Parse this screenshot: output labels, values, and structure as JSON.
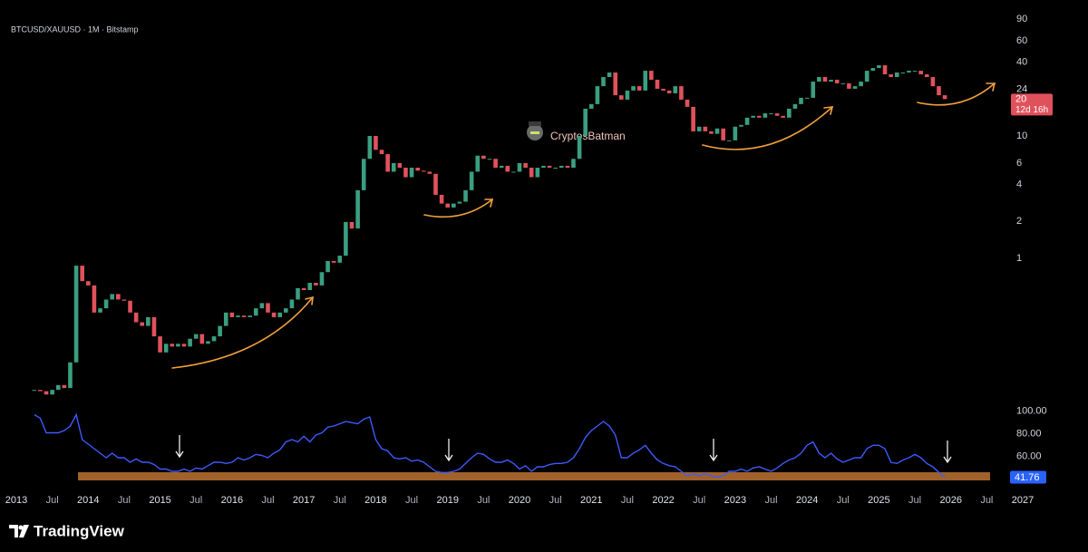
{
  "chart_data": {
    "type": "candlestick",
    "title": "BTCUSD/XAUUSD · 1M · Bitstamp",
    "watermark": "CryptosBatman",
    "countdown": "12d 16h",
    "log_scale": true,
    "up_color": "#3a9f80",
    "down_color": "#e0525b",
    "ylim": [
      0.071,
      95
    ],
    "yticks": [
      90,
      60,
      40,
      24,
      10,
      6,
      4,
      2,
      1
    ],
    "xlim": [
      "2013-01",
      "2027-01"
    ],
    "xticks": [
      {
        "value": "2013-01",
        "label": "2013"
      },
      {
        "value": "2013-07",
        "label": "Jul"
      },
      {
        "value": "2014-01",
        "label": "2014"
      },
      {
        "value": "2014-07",
        "label": "Jul"
      },
      {
        "value": "2015-01",
        "label": "2015"
      },
      {
        "value": "2015-07",
        "label": "Jul"
      },
      {
        "value": "2016-01",
        "label": "2016"
      },
      {
        "value": "2016-07",
        "label": "Jul"
      },
      {
        "value": "2017-01",
        "label": "2017"
      },
      {
        "value": "2017-07",
        "label": "Jul"
      },
      {
        "value": "2018-01",
        "label": "2018"
      },
      {
        "value": "2018-07",
        "label": "Jul"
      },
      {
        "value": "2019-01",
        "label": "2019"
      },
      {
        "value": "2019-07",
        "label": "Jul"
      },
      {
        "value": "2020-01",
        "label": "2020"
      },
      {
        "value": "2020-07",
        "label": "Jul"
      },
      {
        "value": "2021-01",
        "label": "2021"
      },
      {
        "value": "2021-07",
        "label": "Jul"
      },
      {
        "value": "2022-01",
        "label": "2022"
      },
      {
        "value": "2022-07",
        "label": "Jul"
      },
      {
        "value": "2023-01",
        "label": "2023"
      },
      {
        "value": "2023-07",
        "label": "Jul"
      },
      {
        "value": "2024-01",
        "label": "2024"
      },
      {
        "value": "2024-07",
        "label": "Jul"
      },
      {
        "value": "2025-01",
        "label": "2025"
      },
      {
        "value": "2025-07",
        "label": "Jul"
      },
      {
        "value": "2026-01",
        "label": "2026"
      },
      {
        "value": "2026-07",
        "label": "Jul"
      },
      {
        "value": "2027-01",
        "label": "2027"
      }
    ],
    "x": [
      "2013-04",
      "2013-05",
      "2013-06",
      "2013-07",
      "2013-08",
      "2013-09",
      "2013-10",
      "2013-11",
      "2013-12",
      "2014-01",
      "2014-02",
      "2014-03",
      "2014-04",
      "2014-05",
      "2014-06",
      "2014-07",
      "2014-08",
      "2014-09",
      "2014-10",
      "2014-11",
      "2014-12",
      "2015-01",
      "2015-02",
      "2015-03",
      "2015-04",
      "2015-05",
      "2015-06",
      "2015-07",
      "2015-08",
      "2015-09",
      "2015-10",
      "2015-11",
      "2015-12",
      "2016-01",
      "2016-02",
      "2016-03",
      "2016-04",
      "2016-05",
      "2016-06",
      "2016-07",
      "2016-08",
      "2016-09",
      "2016-10",
      "2016-11",
      "2016-12",
      "2017-01",
      "2017-02",
      "2017-03",
      "2017-04",
      "2017-05",
      "2017-06",
      "2017-07",
      "2017-08",
      "2017-09",
      "2017-10",
      "2017-11",
      "2017-12",
      "2018-01",
      "2018-02",
      "2018-03",
      "2018-04",
      "2018-05",
      "2018-06",
      "2018-07",
      "2018-08",
      "2018-09",
      "2018-10",
      "2018-11",
      "2018-12",
      "2019-01",
      "2019-02",
      "2019-03",
      "2019-04",
      "2019-05",
      "2019-06",
      "2019-07",
      "2019-08",
      "2019-09",
      "2019-10",
      "2019-11",
      "2019-12",
      "2020-01",
      "2020-02",
      "2020-03",
      "2020-04",
      "2020-05",
      "2020-06",
      "2020-07",
      "2020-08",
      "2020-09",
      "2020-10",
      "2020-11",
      "2020-12",
      "2021-01",
      "2021-02",
      "2021-03",
      "2021-04",
      "2021-05",
      "2021-06",
      "2021-07",
      "2021-08",
      "2021-09",
      "2021-10",
      "2021-11",
      "2021-12",
      "2022-01",
      "2022-02",
      "2022-03",
      "2022-04",
      "2022-05",
      "2022-06",
      "2022-07",
      "2022-08",
      "2022-09",
      "2022-10",
      "2022-11",
      "2022-12",
      "2023-01",
      "2023-02",
      "2023-03",
      "2023-04",
      "2023-05",
      "2023-06",
      "2023-07",
      "2023-08",
      "2023-09",
      "2023-10",
      "2023-11",
      "2023-12",
      "2024-01",
      "2024-02",
      "2024-03",
      "2024-04",
      "2024-05",
      "2024-06",
      "2024-07",
      "2024-08",
      "2024-09",
      "2024-10",
      "2024-11",
      "2024-12",
      "2025-01",
      "2025-02",
      "2025-03",
      "2025-04",
      "2025-05",
      "2025-06",
      "2025-07",
      "2025-08",
      "2025-09",
      "2025-10",
      "2025-11",
      "2025-12"
    ],
    "closes": [
      0.084,
      0.082,
      0.077,
      0.084,
      0.092,
      0.087,
      0.141,
      0.87,
      0.65,
      0.6,
      0.36,
      0.39,
      0.46,
      0.51,
      0.46,
      0.45,
      0.36,
      0.3,
      0.28,
      0.33,
      0.23,
      0.17,
      0.2,
      0.19,
      0.2,
      0.19,
      0.22,
      0.24,
      0.2,
      0.21,
      0.23,
      0.28,
      0.36,
      0.33,
      0.34,
      0.33,
      0.34,
      0.39,
      0.43,
      0.36,
      0.33,
      0.36,
      0.39,
      0.46,
      0.57,
      0.55,
      0.63,
      0.6,
      0.77,
      0.95,
      0.92,
      1.05,
      1.98,
      1.75,
      3.6,
      6.5,
      10,
      7.7,
      7.1,
      5.1,
      6.0,
      5.5,
      4.6,
      5.5,
      5.2,
      5.1,
      4.9,
      3.3,
      2.8,
      2.6,
      2.8,
      2.9,
      3.6,
      5.1,
      6.9,
      6.5,
      6.5,
      5.5,
      5.7,
      5.1,
      5.1,
      6.0,
      5.5,
      4.6,
      5.5,
      5.7,
      5.5,
      5.5,
      5.7,
      5.5,
      6.5,
      10,
      16.7,
      18.2,
      25.5,
      30.3,
      33,
      21.5,
      19.8,
      23.5,
      25.5,
      23.5,
      34.1,
      28.8,
      24.3,
      23.5,
      22.3,
      25.5,
      19.8,
      17.3,
      10.9,
      11.9,
      10.9,
      10.4,
      11.5,
      9.2,
      9.2,
      11.9,
      12.3,
      14.1,
      14.6,
      14.1,
      15.3,
      15.3,
      14.6,
      14.1,
      16.7,
      18.2,
      20.5,
      20.5,
      27.8,
      30.3,
      27.8,
      28.8,
      26.9,
      26.9,
      24.3,
      25.5,
      27.8,
      34.1,
      35.9,
      37.8,
      31.9,
      30.3,
      33,
      33,
      34.1,
      34.1,
      31.9,
      30.3,
      25.5,
      21.5,
      20
    ],
    "indicator": {
      "type": "line",
      "color": "#3d5afe",
      "ylim": [
        35,
        107
      ],
      "yticks": [
        {
          "value": 100,
          "label": "100.00"
        },
        {
          "value": 80,
          "label": "80.00"
        },
        {
          "value": 60,
          "label": "60.00"
        }
      ],
      "values": [
        97,
        94,
        81,
        81,
        81,
        83,
        87,
        97,
        75,
        71,
        67,
        63,
        59,
        63,
        59,
        59,
        55,
        58,
        55,
        55,
        53,
        49,
        49,
        47,
        47,
        49,
        47,
        50,
        49,
        52,
        55,
        55,
        54,
        55,
        59,
        57,
        59,
        62,
        61,
        59,
        63,
        66,
        73,
        75,
        73,
        78,
        73,
        79,
        81,
        86,
        87,
        89,
        91,
        90,
        89,
        93,
        95,
        75,
        67,
        65,
        59,
        58,
        59,
        56,
        57,
        55,
        51,
        47,
        46,
        46,
        47,
        49,
        54,
        59,
        63,
        62,
        58,
        55,
        55,
        57,
        54,
        49,
        52,
        47,
        51,
        51,
        53,
        54,
        54,
        55,
        59,
        67,
        77,
        83,
        87,
        91,
        87,
        79,
        59,
        59,
        63,
        66,
        70,
        63,
        57,
        54,
        52,
        51,
        47,
        43,
        45,
        43,
        45,
        43,
        42,
        43,
        47,
        47,
        49,
        47,
        50,
        51,
        49,
        47,
        50,
        54,
        57,
        59,
        63,
        70,
        73,
        63,
        59,
        63,
        58,
        55,
        57,
        59,
        59,
        67,
        70,
        70,
        67,
        55,
        54,
        57,
        59,
        62,
        59,
        54,
        51,
        46,
        41.76
      ]
    }
  },
  "footer": {
    "brand": "TradingView"
  }
}
